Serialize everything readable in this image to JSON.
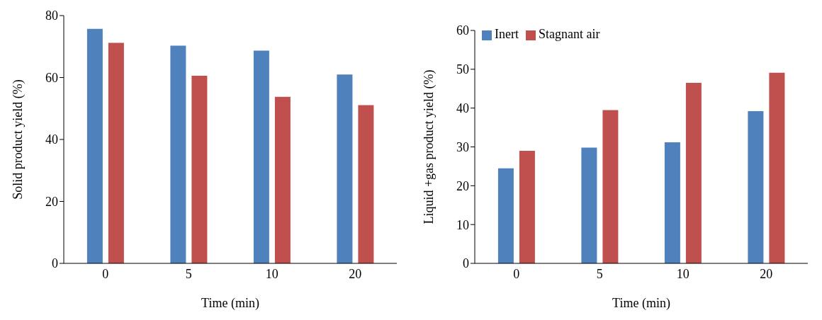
{
  "chart_data": [
    {
      "type": "bar",
      "categories": [
        "0",
        "5",
        "10",
        "20"
      ],
      "xlabel": "Time (min)",
      "ylabel": "Solid product yield (%)",
      "ylim": [
        0,
        80
      ],
      "yticks": [
        0,
        20,
        40,
        60,
        80
      ],
      "legend": false,
      "series": [
        {
          "color": "#4f81bd",
          "values": [
            75.7,
            70.3,
            68.7,
            61.0
          ]
        },
        {
          "color": "#c0504d",
          "values": [
            71.2,
            60.6,
            53.8,
            51.1
          ]
        }
      ]
    },
    {
      "type": "bar",
      "categories": [
        "0",
        "5",
        "10",
        "20"
      ],
      "xlabel": "Time (min)",
      "ylabel": "Liquid +gas product yield (%)",
      "ylim": [
        0,
        60
      ],
      "yticks": [
        0,
        10,
        20,
        30,
        40,
        50,
        60
      ],
      "legend": "top left",
      "series": [
        {
          "name": "Inert",
          "color": "#4f81bd",
          "values": [
            24.5,
            29.8,
            31.2,
            39.2
          ]
        },
        {
          "name": "Stagnant air",
          "color": "#c0504d",
          "values": [
            29.0,
            39.5,
            46.5,
            49.1
          ]
        }
      ]
    }
  ]
}
